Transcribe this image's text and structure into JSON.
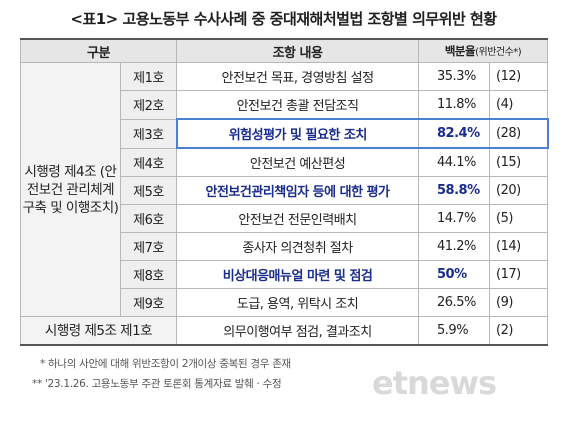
{
  "title": "<표1> 고용노동부 수사사례 중 중대재해처벌법 조항별 의무위반 현황",
  "table": {
    "headers": {
      "category": "구분",
      "clause": "조항 내용",
      "percent": "백분율",
      "count": "(위반건수*)"
    },
    "group1": "시행령 제4조 (안전보건 관리체계 구축 및 이행조치)",
    "rows": [
      {
        "ho": "제1호",
        "item": "안전보건 목표, 경영방침 설정",
        "pct": "35.3%",
        "cnt": "(12)"
      },
      {
        "ho": "제2호",
        "item": "안전보건 총괄 전담조직",
        "pct": "11.8%",
        "cnt": "(4)"
      },
      {
        "ho": "제3호",
        "item": "위험성평가 및 필요한 조치",
        "pct": "82.4%",
        "cnt": "(28)"
      },
      {
        "ho": "제4호",
        "item": "안전보건 예산편성",
        "pct": "44.1%",
        "cnt": "(15)"
      },
      {
        "ho": "제5호",
        "item": "안전보건관리책임자 등에 대한 평가",
        "pct": "58.8%",
        "cnt": "(20)"
      },
      {
        "ho": "제6호",
        "item": "안전보건 전문인력배치",
        "pct": "14.7%",
        "cnt": "(5)"
      },
      {
        "ho": "제7호",
        "item": "종사자 의견청취 절차",
        "pct": "41.2%",
        "cnt": "(14)"
      },
      {
        "ho": "제8호",
        "item": "비상대응매뉴얼 마련 및 점검",
        "pct": "50%",
        "cnt": "(17)"
      },
      {
        "ho": "제9호",
        "item": "도급, 용역, 위탁시 조치",
        "pct": "26.5%",
        "cnt": "(9)"
      }
    ],
    "last_row": {
      "label": "시행령 제5조 제1호",
      "item": "의무이행여부 점검, 결과조치",
      "pct": "5.9%",
      "cnt": "(2)"
    }
  },
  "notes": [
    "* 하나의 사안에 대해 위반조항이 2개이상 중복된 경우 존재",
    "** '23.1.26. 고용노동부 주관 토론회 통계자료 발췌 · 수정"
  ],
  "watermark": "etnews",
  "colors": {
    "highlight_text": "#1a2c8e",
    "highlight_box": "#4a7fd1",
    "header_bg": "#e6e6e6"
  }
}
